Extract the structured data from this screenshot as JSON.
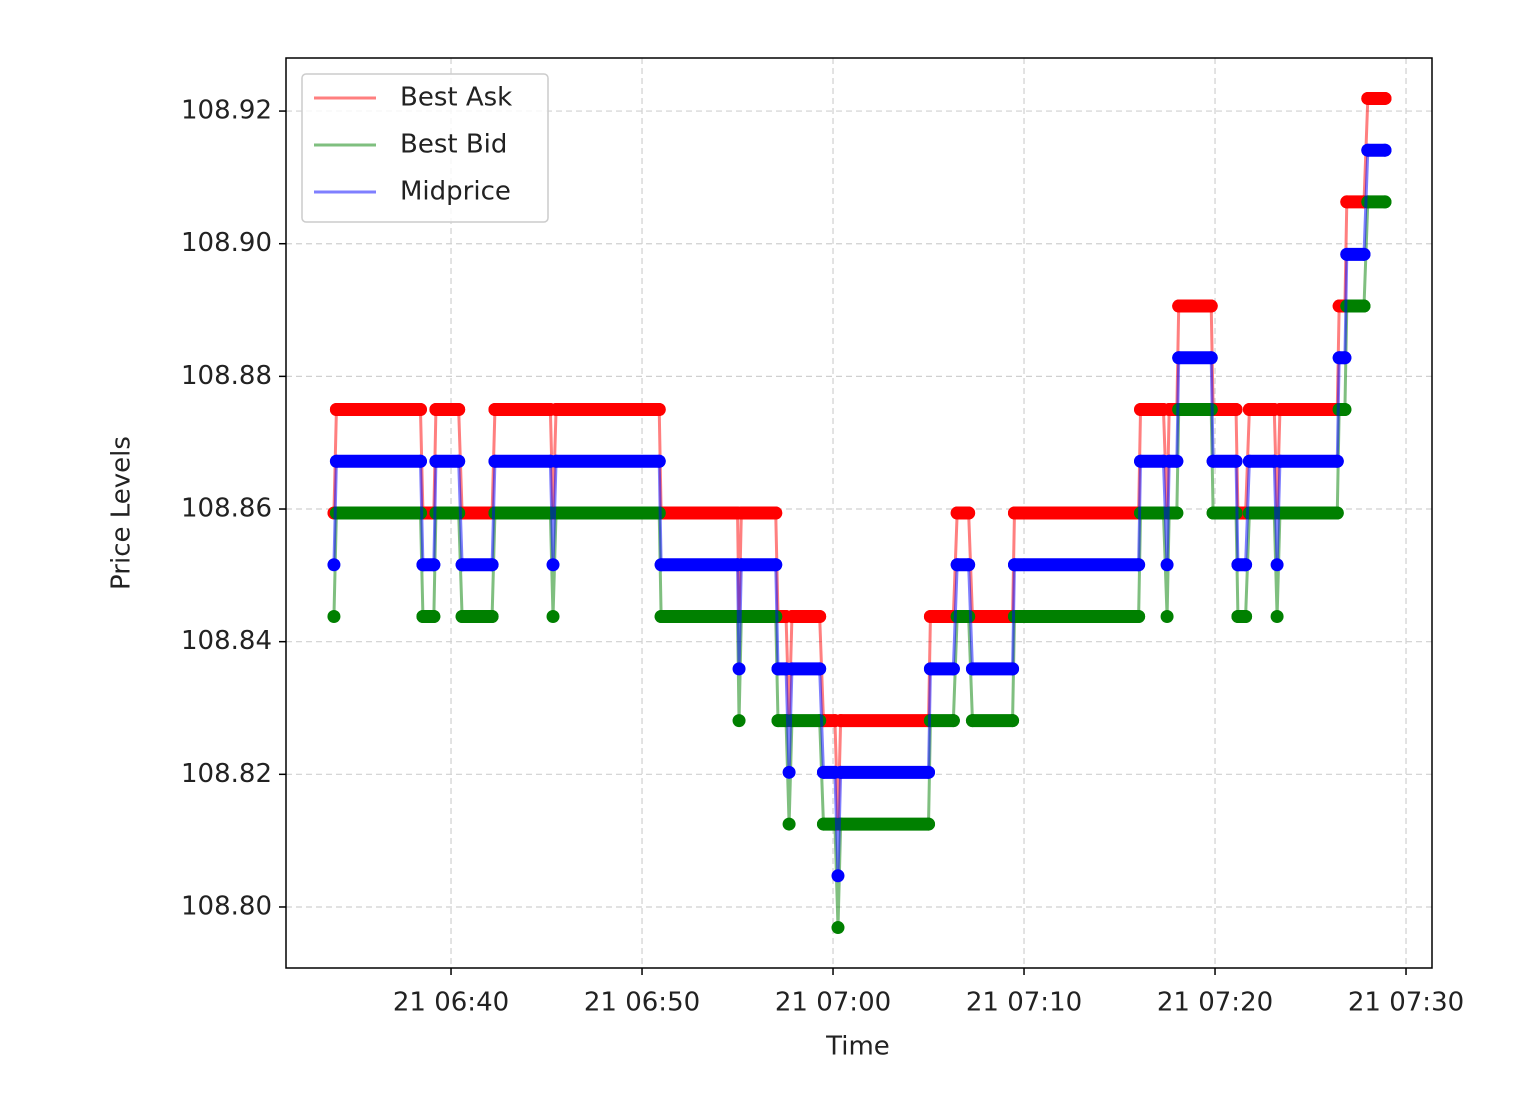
{
  "chart_data": {
    "type": "line",
    "xlabel": "Time",
    "ylabel": "Price Levels",
    "x": [
      33.87,
      34.0,
      38.4,
      38.53,
      39.1,
      39.21,
      40.4,
      40.58,
      42.15,
      42.3,
      45.2,
      45.34,
      45.5,
      50.9,
      51.0,
      55.0,
      55.08,
      55.2,
      57.0,
      57.12,
      57.54,
      57.7,
      57.85,
      59.3,
      59.5,
      60.1,
      60.26,
      60.4,
      65.0,
      65.1,
      66.3,
      66.5,
      67.1,
      67.3,
      69.4,
      69.5,
      76.0,
      76.1,
      77.3,
      77.49,
      77.6,
      78.0,
      78.1,
      79.8,
      79.9,
      81.1,
      81.2,
      81.6,
      81.8,
      83.1,
      83.25,
      83.4,
      86.4,
      86.5,
      86.8,
      86.9,
      87.8,
      88.0,
      88.9
    ],
    "series": [
      {
        "name": "Best Ask",
        "color": "#ff0000",
        "values": [
          108.8594,
          108.875,
          108.875,
          108.8594,
          108.8594,
          108.875,
          108.875,
          108.8594,
          108.8594,
          108.875,
          108.875,
          108.8594,
          108.875,
          108.875,
          108.8594,
          108.8594,
          108.8438,
          108.8594,
          108.8594,
          108.8438,
          108.8438,
          108.8281,
          108.8438,
          108.8438,
          108.8281,
          108.8281,
          108.8125,
          108.8281,
          108.8281,
          108.8438,
          108.8438,
          108.8594,
          108.8594,
          108.8438,
          108.8438,
          108.8594,
          108.8594,
          108.875,
          108.875,
          108.8594,
          108.875,
          108.875,
          108.8906,
          108.8906,
          108.875,
          108.875,
          108.8594,
          108.8594,
          108.875,
          108.875,
          108.8594,
          108.875,
          108.875,
          108.8906,
          108.8906,
          108.9063,
          108.9063,
          108.9219,
          108.9219
        ]
      },
      {
        "name": "Best Bid",
        "color": "#008000",
        "values": [
          108.8438,
          108.8594,
          108.8594,
          108.8438,
          108.8438,
          108.8594,
          108.8594,
          108.8438,
          108.8438,
          108.8594,
          108.8594,
          108.8438,
          108.8594,
          108.8594,
          108.8438,
          108.8438,
          108.8281,
          108.8438,
          108.8438,
          108.8281,
          108.8281,
          108.8125,
          108.8281,
          108.8281,
          108.8125,
          108.8125,
          108.7969,
          108.8125,
          108.8125,
          108.8281,
          108.8281,
          108.8438,
          108.8438,
          108.8281,
          108.8281,
          108.8438,
          108.8438,
          108.8594,
          108.8594,
          108.8438,
          108.8594,
          108.8594,
          108.875,
          108.875,
          108.8594,
          108.8594,
          108.8438,
          108.8438,
          108.8594,
          108.8594,
          108.8438,
          108.8594,
          108.8594,
          108.875,
          108.875,
          108.8906,
          108.8906,
          108.9063,
          108.9063
        ]
      },
      {
        "name": "Midprice",
        "color": "#0000ff",
        "values": [
          108.8516,
          108.8672,
          108.8672,
          108.8516,
          108.8516,
          108.8672,
          108.8672,
          108.8516,
          108.8516,
          108.8672,
          108.8672,
          108.8516,
          108.8672,
          108.8672,
          108.8516,
          108.8516,
          108.8359,
          108.8516,
          108.8516,
          108.8359,
          108.8359,
          108.8203,
          108.8359,
          108.8359,
          108.8203,
          108.8203,
          108.8047,
          108.8203,
          108.8203,
          108.8359,
          108.8359,
          108.8516,
          108.8516,
          108.8359,
          108.8359,
          108.8516,
          108.8516,
          108.8672,
          108.8672,
          108.8516,
          108.8672,
          108.8672,
          108.8828,
          108.8828,
          108.8672,
          108.8672,
          108.8516,
          108.8516,
          108.8672,
          108.8672,
          108.8516,
          108.8672,
          108.8672,
          108.8828,
          108.8828,
          108.8984,
          108.8984,
          108.9141,
          108.9141
        ]
      }
    ],
    "xlim": [
      31.36,
      91.36
    ],
    "xticks": [
      {
        "value": 40,
        "label": "21 06:40"
      },
      {
        "value": 50,
        "label": "21 06:50"
      },
      {
        "value": 60,
        "label": "21 07:00"
      },
      {
        "value": 70,
        "label": "21 07:10"
      },
      {
        "value": 80,
        "label": "21 07:20"
      },
      {
        "value": 90,
        "label": "21 07:30"
      }
    ],
    "ylim": [
      108.7908,
      108.928
    ],
    "yticks": [
      {
        "value": 108.8,
        "label": "108.80"
      },
      {
        "value": 108.82,
        "label": "108.82"
      },
      {
        "value": 108.84,
        "label": "108.84"
      },
      {
        "value": 108.86,
        "label": "108.86"
      },
      {
        "value": 108.88,
        "label": "108.88"
      },
      {
        "value": 108.9,
        "label": "108.90"
      },
      {
        "value": 108.92,
        "label": "108.92"
      }
    ],
    "grid": true,
    "legend": "upper left"
  }
}
